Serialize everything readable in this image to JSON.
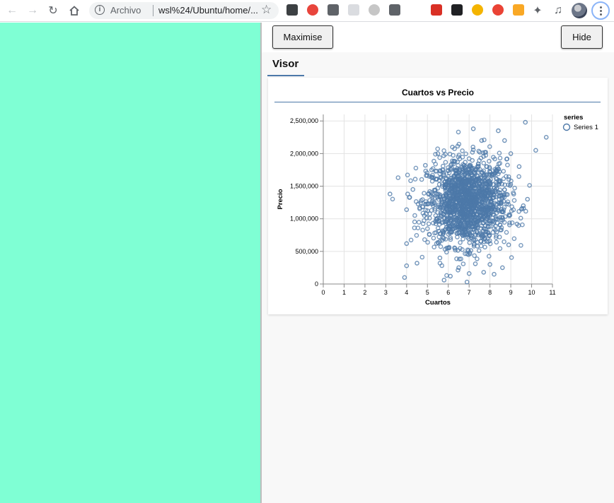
{
  "browser": {
    "url_chip": "Archivo",
    "url": "wsl%24/Ubuntu/home/...",
    "extension_colors": [
      "#3c4043",
      "#e8453c",
      "#5f6368",
      "#dadce0",
      "#c6c6c6",
      "#5f6368",
      "#d93025",
      "#202124",
      "#f4b400",
      "#ea4335",
      "#f9a825"
    ]
  },
  "panel": {
    "maximise_label": "Maximise",
    "hide_label": "Hide",
    "tab_label": "Visor"
  },
  "colors": {
    "left_pane": "#7fffd4",
    "series": "#4c78a8"
  },
  "chart_data": {
    "type": "scatter",
    "title": "Cuartos vs Precio",
    "xlabel": "Cuartos",
    "ylabel": "Precio",
    "xlim": [
      0,
      11
    ],
    "ylim": [
      0,
      2600000
    ],
    "xticks": [
      0,
      1,
      2,
      3,
      4,
      5,
      6,
      7,
      8,
      9,
      10,
      11
    ],
    "yticks": [
      0,
      500000,
      1000000,
      1500000,
      2000000,
      2500000
    ],
    "ytick_labels": [
      "0",
      "500,000",
      "1,000,000",
      "1,500,000",
      "2,000,000",
      "2,500,000"
    ],
    "grid": true,
    "legend": {
      "title": "series",
      "position": "right"
    },
    "series": [
      {
        "name": "Series 1",
        "color": "#4c78a8",
        "cluster": {
          "x_mean": 6.9,
          "x_sd": 0.95,
          "y_mean": 1250000,
          "y_sd": 330000,
          "n": 1600
        },
        "points": [
          [
            3.2,
            1380000
          ],
          [
            3.9,
            100000
          ],
          [
            4.0,
            280000
          ],
          [
            4.0,
            620000
          ],
          [
            4.0,
            1140000
          ],
          [
            4.3,
            1450000
          ],
          [
            4.5,
            320000
          ],
          [
            4.9,
            1820000
          ],
          [
            5.2,
            1750000
          ],
          [
            5.5,
            2000000
          ],
          [
            5.6,
            400000
          ],
          [
            5.8,
            60000
          ],
          [
            6.1,
            120000
          ],
          [
            6.2,
            2100000
          ],
          [
            6.5,
            250000
          ],
          [
            6.9,
            30000
          ],
          [
            7.0,
            160000
          ],
          [
            7.2,
            2380000
          ],
          [
            7.3,
            310000
          ],
          [
            7.6,
            2200000
          ],
          [
            7.7,
            180000
          ],
          [
            7.8,
            2020000
          ],
          [
            8.0,
            300000
          ],
          [
            8.2,
            150000
          ],
          [
            8.4,
            2350000
          ],
          [
            8.6,
            250000
          ],
          [
            8.7,
            2200000
          ],
          [
            8.9,
            600000
          ],
          [
            9.0,
            2000000
          ],
          [
            9.3,
            920000
          ],
          [
            9.4,
            1800000
          ],
          [
            9.6,
            1200000
          ],
          [
            9.7,
            2480000
          ],
          [
            9.8,
            1300000
          ],
          [
            10.2,
            2050000
          ],
          [
            10.7,
            2250000
          ]
        ]
      }
    ]
  }
}
